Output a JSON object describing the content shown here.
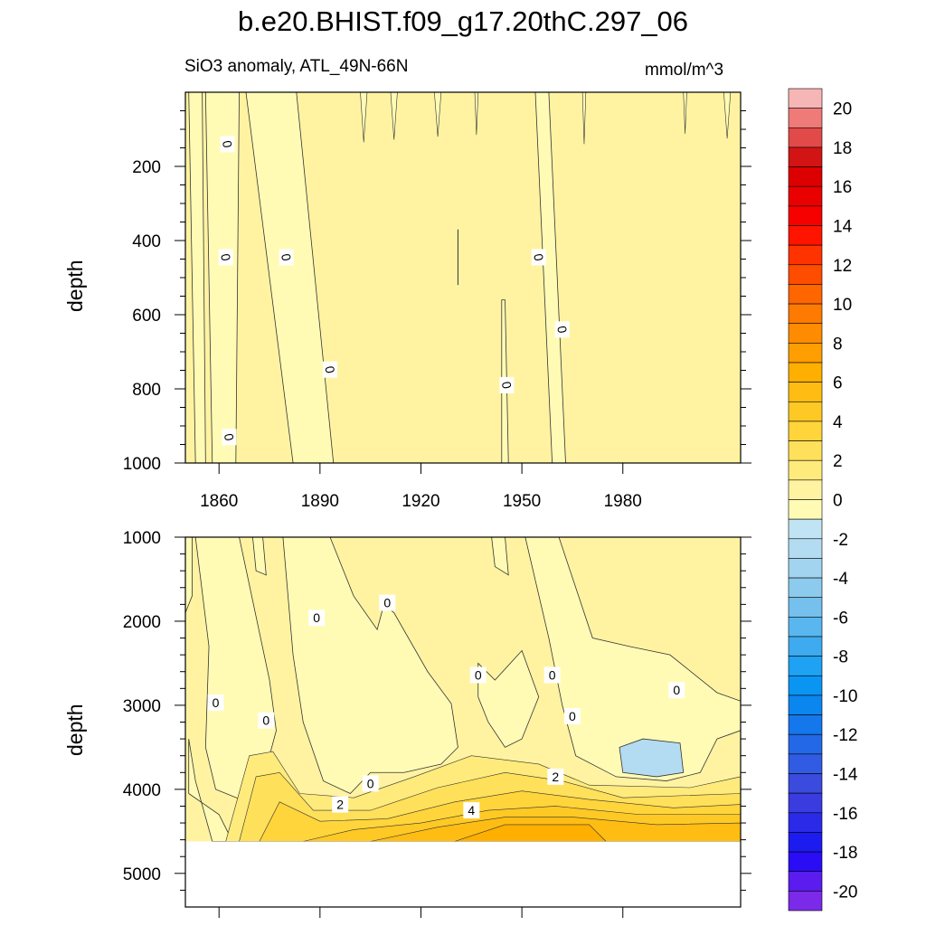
{
  "title": "b.e20.BHIST.f09_g17.20thC.297_06",
  "subtitle": "SiO3 anomaly, ATL_49N-66N",
  "units": "mmol/m^3",
  "chart_data": [
    {
      "type": "heatmap",
      "panel": "upper",
      "ylabel": "depth",
      "xlim": [
        1850,
        2015
      ],
      "ylim": [
        0,
        1000
      ],
      "y_inverted": true,
      "x_ticks": [
        "1860",
        "1890",
        "1920",
        "1950",
        "1980"
      ],
      "x_tick_values": [
        1860,
        1890,
        1920,
        1950,
        1980
      ],
      "y_ticks": [
        "200",
        "400",
        "600",
        "800",
        "1000"
      ],
      "y_tick_values": [
        200,
        400,
        600,
        800,
        1000
      ],
      "negative_bands": [
        {
          "x_top": [
            1851,
            1855
          ],
          "x_bottom": [
            1853,
            1856
          ]
        },
        {
          "x_top": [
            1856,
            1866
          ],
          "x_bottom": [
            1858,
            1865
          ]
        },
        {
          "x_top": [
            1868,
            1883
          ],
          "x_bottom": [
            1882,
            1894
          ]
        },
        {
          "x_top": [
            1954,
            1958
          ],
          "x_bottom": [
            1959,
            1963
          ]
        },
        {
          "x_top": [
            1944,
            1945
          ],
          "x_bottom": [
            1944,
            1946
          ],
          "y_start": 560
        }
      ],
      "contour_labels": [
        {
          "text": "0",
          "x": 1862.5,
          "y": 140
        },
        {
          "text": "0",
          "x": 1862,
          "y": 445
        },
        {
          "text": "0",
          "x": 1880,
          "y": 445
        },
        {
          "text": "0",
          "x": 1893,
          "y": 748
        },
        {
          "text": "0",
          "x": 1863,
          "y": 930
        },
        {
          "text": "0",
          "x": 1945.5,
          "y": 790
        },
        {
          "text": "0",
          "x": 1955,
          "y": 445
        },
        {
          "text": "0",
          "x": 1962,
          "y": 640
        }
      ]
    },
    {
      "type": "heatmap",
      "panel": "lower",
      "ylabel": "depth",
      "xlim": [
        1850,
        2015
      ],
      "ylim": [
        1000,
        5400
      ],
      "y_inverted": true,
      "no_data_below": 4620,
      "y_ticks": [
        "1000",
        "2000",
        "3000",
        "4000",
        "5000"
      ],
      "y_tick_values": [
        1000,
        2000,
        3000,
        4000,
        5000
      ],
      "max_anomaly_approx": 10,
      "contour_labels": [
        {
          "text": "0",
          "x": 1859,
          "y": 2970
        },
        {
          "text": "0",
          "x": 1874,
          "y": 3180
        },
        {
          "text": "0",
          "x": 1889,
          "y": 1960
        },
        {
          "text": "0",
          "x": 1910,
          "y": 1780
        },
        {
          "text": "0",
          "x": 1905,
          "y": 3930
        },
        {
          "text": "0",
          "x": 1937,
          "y": 2640
        },
        {
          "text": "0",
          "x": 1959,
          "y": 2640
        },
        {
          "text": "0",
          "x": 1965,
          "y": 3130
        },
        {
          "text": "0",
          "x": 1996,
          "y": 2820
        },
        {
          "text": "2",
          "x": 1896,
          "y": 4180
        },
        {
          "text": "2",
          "x": 1960,
          "y": 3850
        },
        {
          "text": "4",
          "x": 1935,
          "y": 4250
        }
      ]
    }
  ],
  "colorbar": {
    "labels": [
      "20",
      "18",
      "16",
      "14",
      "12",
      "10",
      "8",
      "6",
      "4",
      "2",
      "0",
      "-2",
      "-4",
      "-6",
      "-8",
      "-10",
      "-12",
      "-14",
      "-16",
      "-18",
      "-20"
    ],
    "colors": [
      "#f7b6b6",
      "#ee7b78",
      "#e24a4a",
      "#d21414",
      "#dd0000",
      "#ea0000",
      "#f60000",
      "#ff1400",
      "#ff3300",
      "#ff4d00",
      "#ff6600",
      "#ff7a00",
      "#ff8c00",
      "#ff9e00",
      "#ffaf00",
      "#ffbd13",
      "#ffc925",
      "#ffd53b",
      "#ffe05a",
      "#ffeb7c",
      "#fff3a2",
      "#fffbb5",
      "#c1e4f4",
      "#b3dcf2",
      "#a3d4ef",
      "#8ccbed",
      "#75c0ec",
      "#5ab6ee",
      "#3eabf0",
      "#1ea2f3",
      "#0a95f2",
      "#0b86ef",
      "#1577ec",
      "#2369e7",
      "#315be2",
      "#3a4bdd",
      "#3a3ce0",
      "#2a2ae8",
      "#1c1cf0",
      "#2a0cf5",
      "#5a1cef",
      "#7a2ae8"
    ]
  }
}
